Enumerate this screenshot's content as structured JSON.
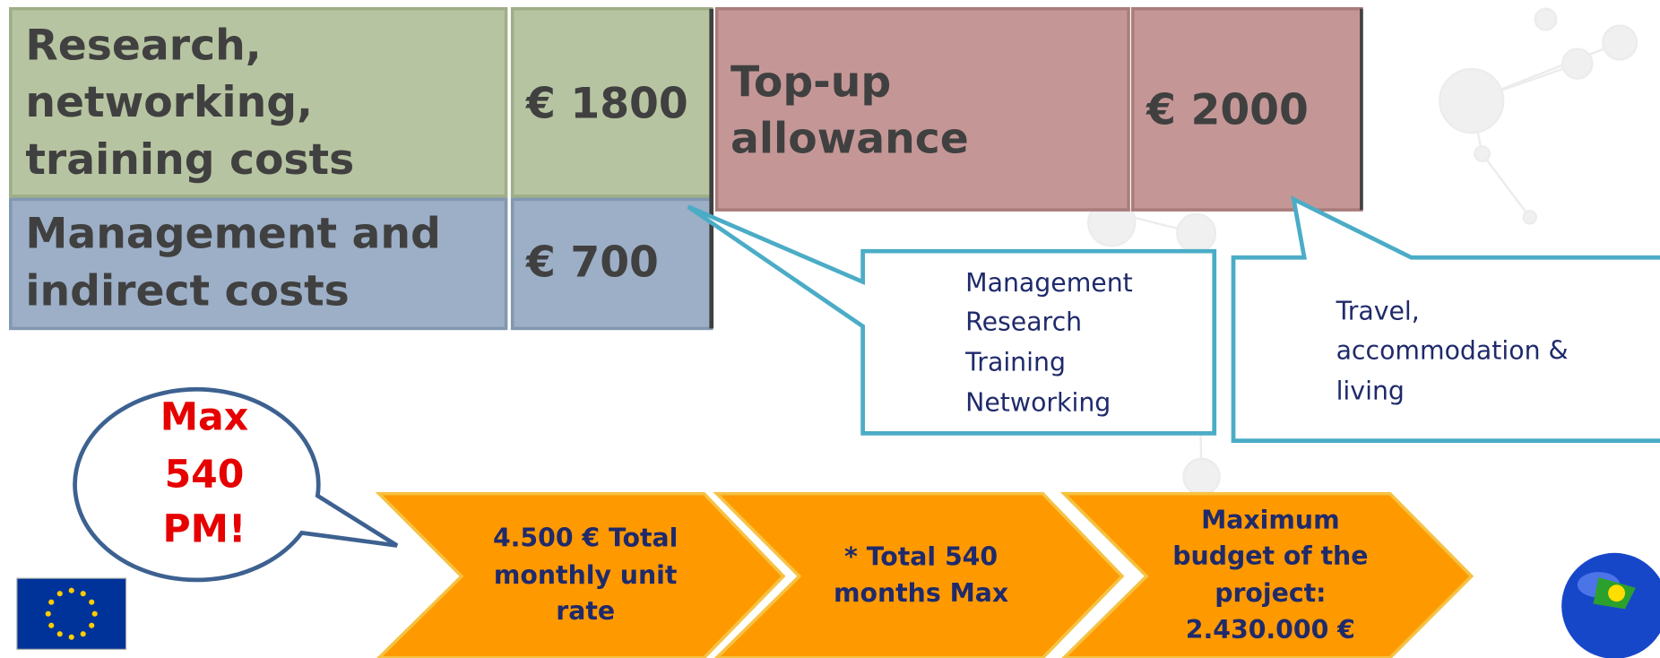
{
  "cells": [
    {
      "label": [
        "Research,",
        "networking,",
        "training costs"
      ],
      "amount": "€ 1800"
    },
    {
      "label": [
        "Top-up",
        "allowance"
      ],
      "amount": "€ 2000"
    },
    {
      "label": [
        "Management and",
        "indirect costs"
      ],
      "amount": "€ 700"
    }
  ],
  "callouts": [
    {
      "lines": [
        "Management",
        "Research",
        "Training",
        "Networking"
      ]
    },
    {
      "lines": [
        "Travel,",
        "accommodation &",
        "living"
      ]
    }
  ],
  "bubble": {
    "lines": [
      "Max",
      "540",
      "PM!"
    ]
  },
  "chevrons": [
    {
      "lines": [
        "4.500 € Total",
        "monthly unit",
        "rate"
      ]
    },
    {
      "lines": [
        "* Total  540",
        "months Max"
      ]
    },
    {
      "lines": [
        "Maximum",
        "budget of the",
        "project:",
        "2.430.000 €"
      ]
    }
  ]
}
